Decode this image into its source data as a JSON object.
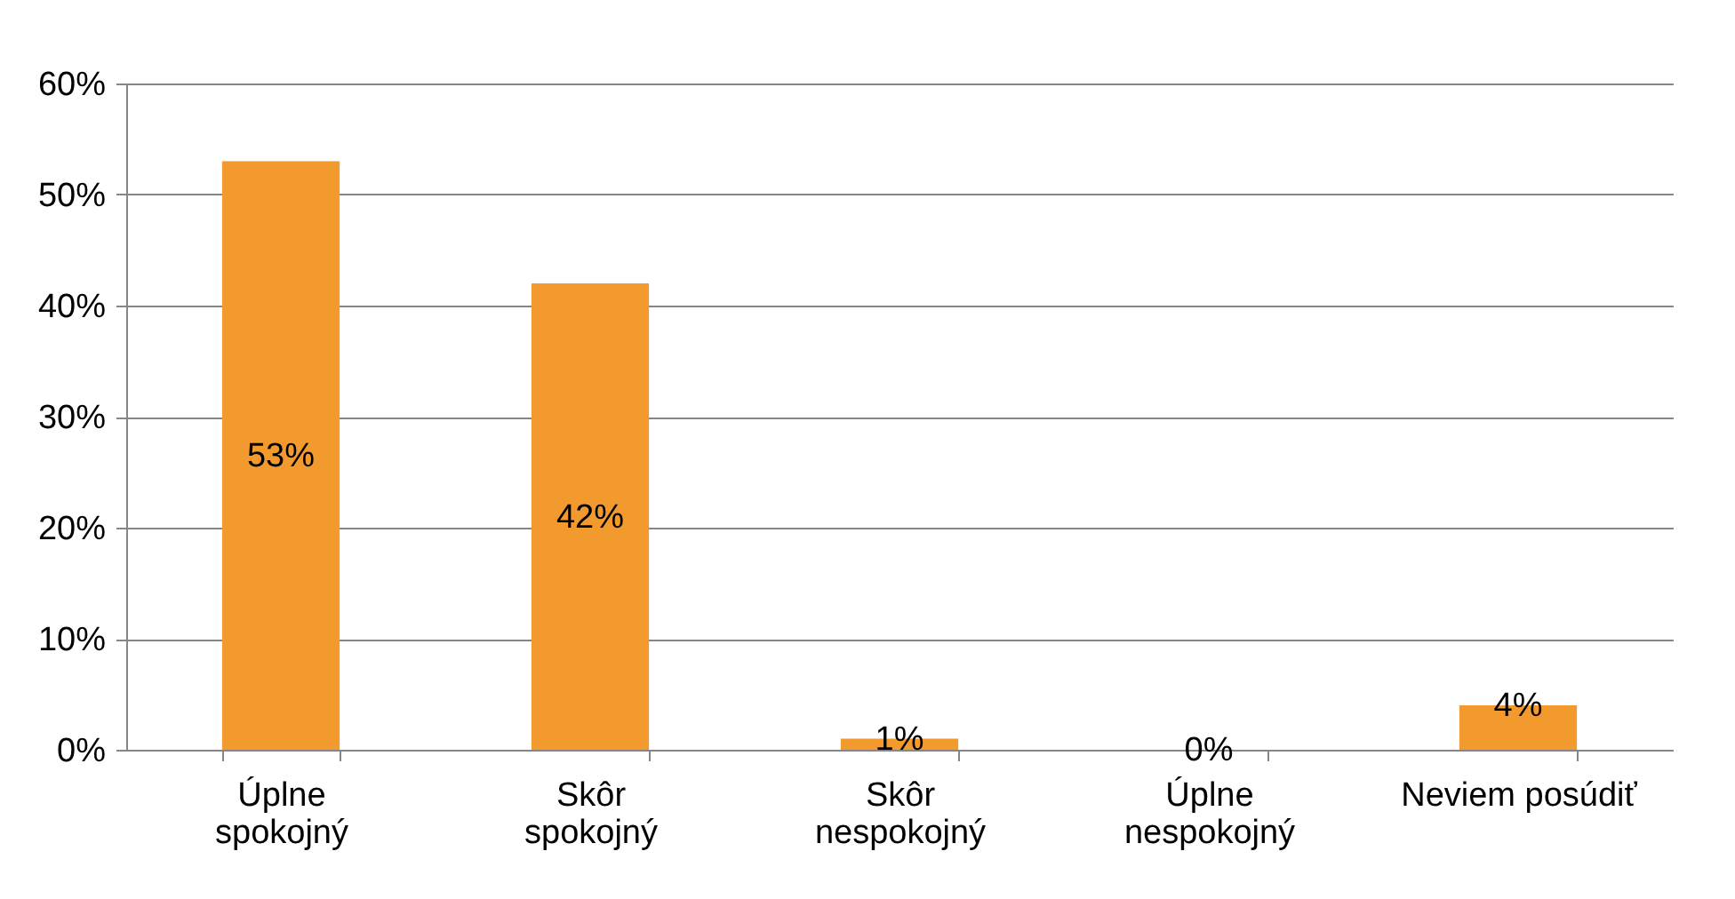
{
  "chart_data": {
    "type": "bar",
    "categories": [
      "Úplne\nspokojný",
      "Skôr\nspokojný",
      "Skôr\nnespokojný",
      "Úplne\nnespokojný",
      "Neviem posúdiť"
    ],
    "values": [
      53,
      42,
      1,
      0,
      4
    ],
    "value_labels": [
      "53%",
      "42%",
      "1%",
      "0%",
      "4%"
    ],
    "color": "#f39a2e",
    "ylim": [
      0,
      60
    ],
    "yticks": [
      {
        "value": 0,
        "label": "0%"
      },
      {
        "value": 10,
        "label": "10%"
      },
      {
        "value": 20,
        "label": "20%"
      },
      {
        "value": 30,
        "label": "30%"
      },
      {
        "value": 40,
        "label": "40%"
      },
      {
        "value": 50,
        "label": "50%"
      },
      {
        "value": 60,
        "label": "60%"
      }
    ],
    "grid": "y"
  }
}
